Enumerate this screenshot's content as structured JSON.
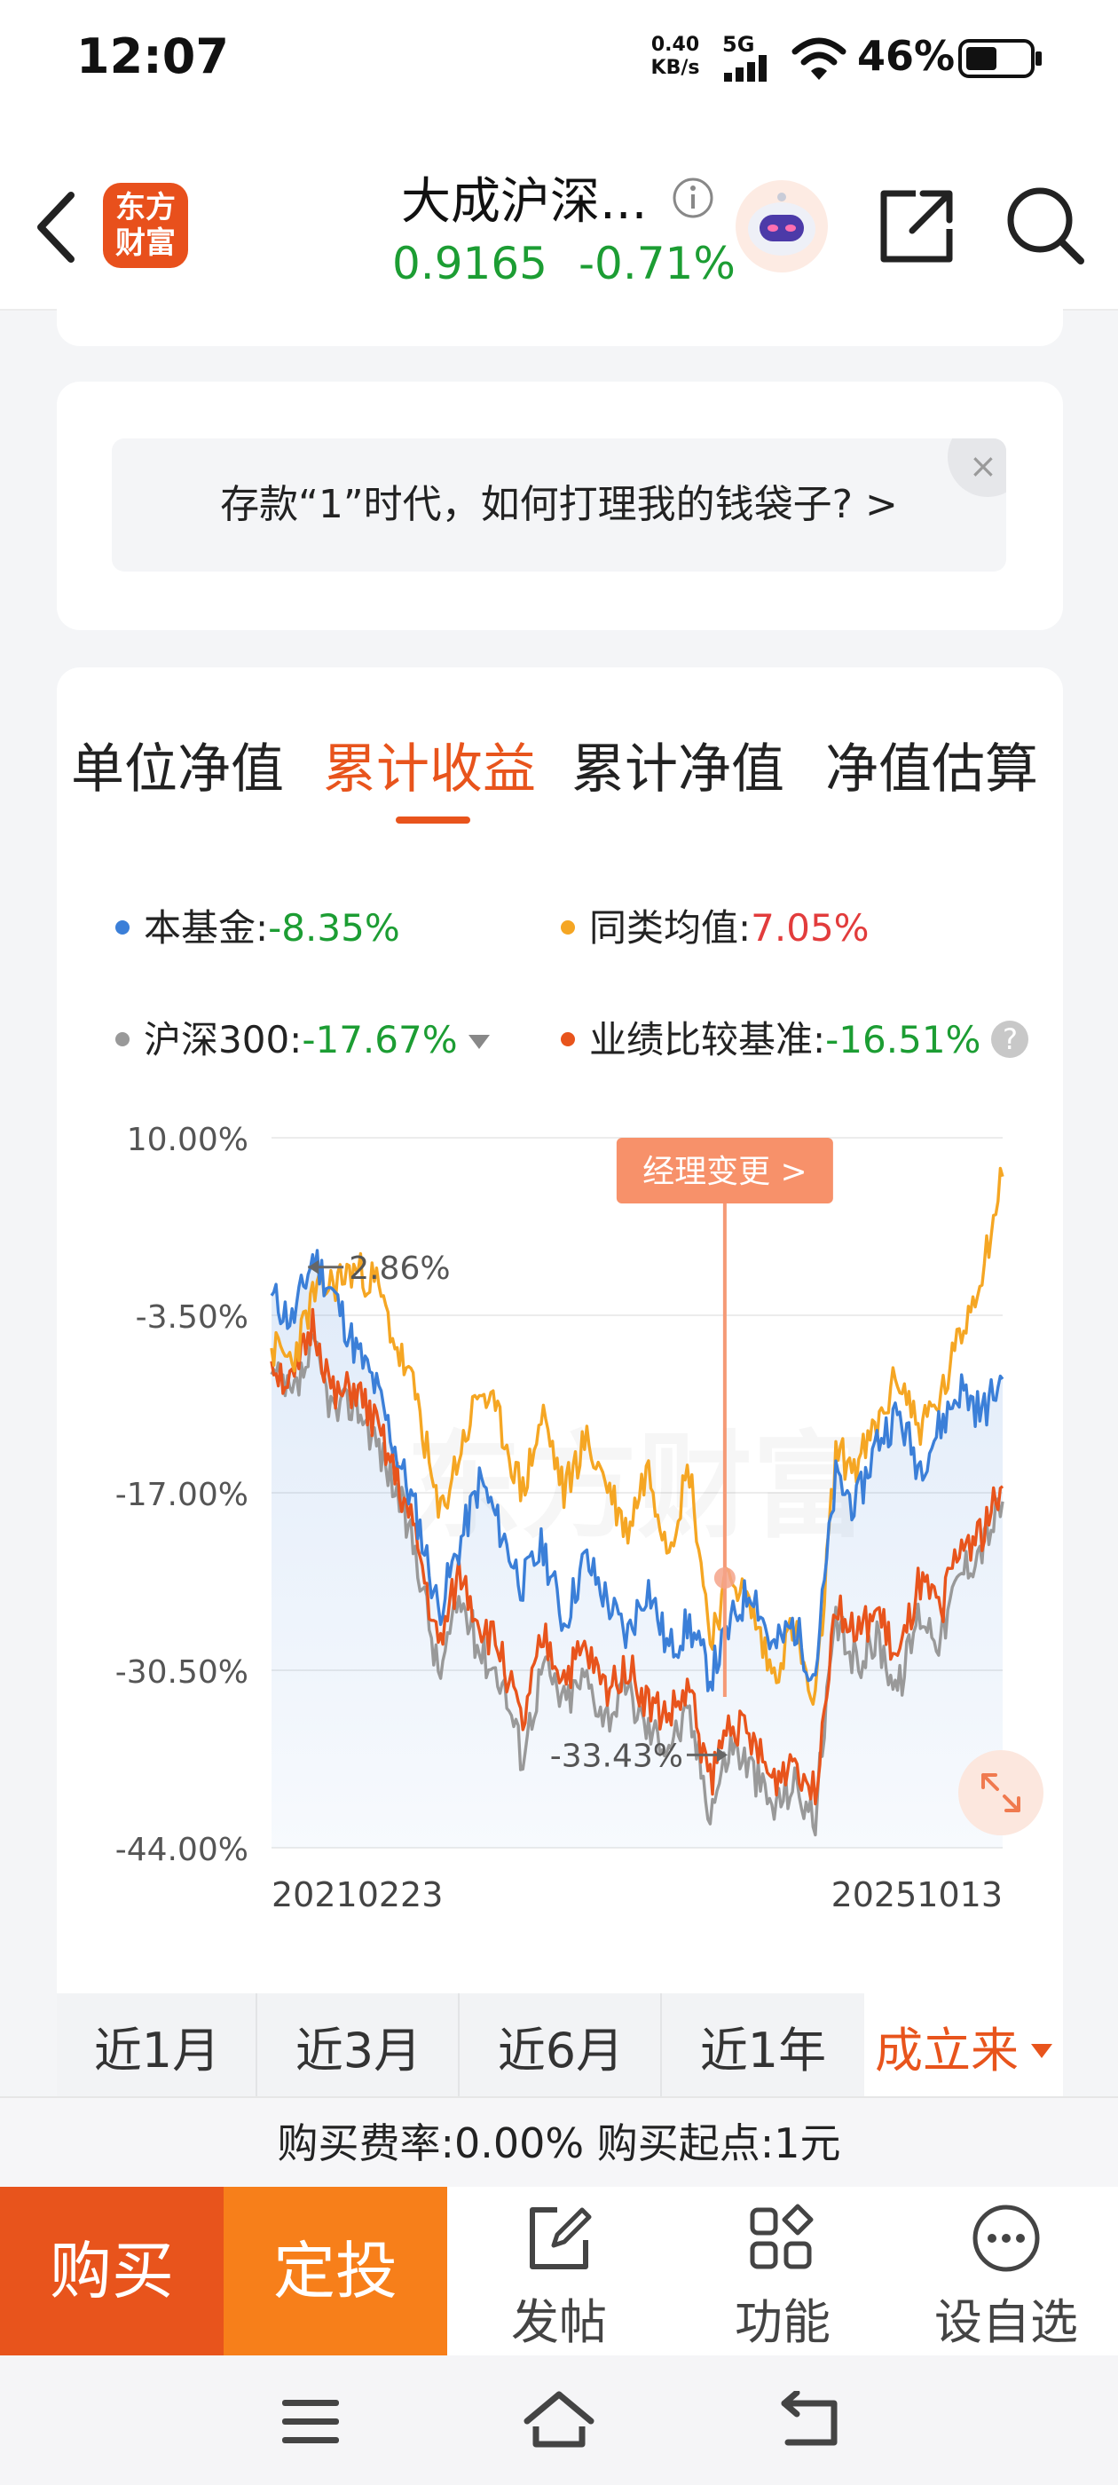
{
  "status_bar": {
    "time": "12:07",
    "net_speed_value": "0.40",
    "net_speed_unit": "KB/s",
    "network": "5G",
    "battery": "46%"
  },
  "header": {
    "logo_line1": "东方",
    "logo_line2": "财富",
    "fund_name": "大成沪深...",
    "price": "0.9165",
    "change": "-0.71%",
    "price_color": "#1c9d33"
  },
  "banner": {
    "text": "存款“1”时代，如何打理我的钱袋子? >",
    "close": "×"
  },
  "tabs": [
    {
      "label": "单位净值",
      "selected": false
    },
    {
      "label": "累计收益",
      "selected": true
    },
    {
      "label": "累计净值",
      "selected": false
    },
    {
      "label": "净值估算",
      "selected": false
    }
  ],
  "legend": {
    "fund_label": "本基金:",
    "fund_value": "-8.35%",
    "avg_label": "同类均值:",
    "avg_value": "7.05%",
    "hs300_label": "沪深300:",
    "hs300_value": "-17.67%",
    "bench_label": "业绩比较基准:",
    "bench_value": "-16.51%",
    "help": "?"
  },
  "chart_data": {
    "type": "line",
    "y_ticks": [
      "10.00%",
      "-3.50%",
      "-17.00%",
      "-30.50%",
      "-44.00%"
    ],
    "ylim": [
      -44,
      10
    ],
    "x_start": "20210223",
    "x_end": "20251013",
    "annotation_max": "2.86%",
    "annotation_min": "-33.43%",
    "manager_change_label": "经理变更 >",
    "manager_change_position": 0.62,
    "watermark": "东方财富",
    "series": [
      {
        "name": "本基金",
        "color": "#3b7fd8",
        "values": [
          -2,
          -4,
          1,
          -2,
          -6,
          -9,
          -14,
          -19,
          -26,
          -21,
          -16,
          -20,
          -24,
          -21,
          -27,
          -22,
          -25,
          -28,
          -24,
          -29,
          -27,
          -31,
          -27,
          -24,
          -29,
          -27,
          -31,
          -16,
          -18,
          -13,
          -11,
          -15,
          -12,
          -9,
          -11,
          -8.35
        ]
      },
      {
        "name": "同类均值",
        "color": "#f5a623",
        "values": [
          -6,
          -7,
          -2,
          -1,
          0,
          -1,
          -6,
          -10,
          -19,
          -14,
          -9,
          -12,
          -17,
          -11,
          -17,
          -13,
          -16,
          -20,
          -15,
          -21,
          -15,
          -28,
          -23,
          -26,
          -31,
          -27,
          -34,
          -14,
          -15,
          -12,
          -8,
          -12,
          -10,
          -5,
          0,
          7.05
        ]
      },
      {
        "name": "沪深300",
        "color": "#999999",
        "values": [
          -8,
          -10,
          -6,
          -11,
          -10,
          -13,
          -17,
          -22,
          -31,
          -25,
          -29,
          -31,
          -37,
          -30,
          -33,
          -31,
          -34,
          -32,
          -35,
          -36,
          -34,
          -41,
          -36,
          -38,
          -41,
          -39,
          -42,
          -27,
          -30,
          -28,
          -32,
          -26,
          -28,
          -23,
          -21,
          -17.67
        ]
      },
      {
        "name": "业绩比较基准",
        "color": "#e8541c",
        "values": [
          -7,
          -9,
          -4,
          -10,
          -9,
          -12,
          -16,
          -21,
          -29,
          -23,
          -27,
          -29,
          -35,
          -28,
          -31,
          -29,
          -32,
          -30,
          -33,
          -34,
          -32,
          -39,
          -34,
          -36,
          -39,
          -37,
          -40,
          -25,
          -28,
          -26,
          -30,
          -24,
          -26,
          -21,
          -20,
          -16.51
        ]
      }
    ]
  },
  "periods": [
    {
      "label": "近1月",
      "selected": false
    },
    {
      "label": "近3月",
      "selected": false
    },
    {
      "label": "近6月",
      "selected": false
    },
    {
      "label": "近1年",
      "selected": false
    },
    {
      "label": "成立来",
      "selected": true
    }
  ],
  "fee_bar": {
    "text": "购买费率:0.00%   购买起点:1元"
  },
  "actions": {
    "buy": "购买",
    "invest": "定投",
    "post": "发帖",
    "functions": "功能",
    "watchlist": "设自选"
  }
}
